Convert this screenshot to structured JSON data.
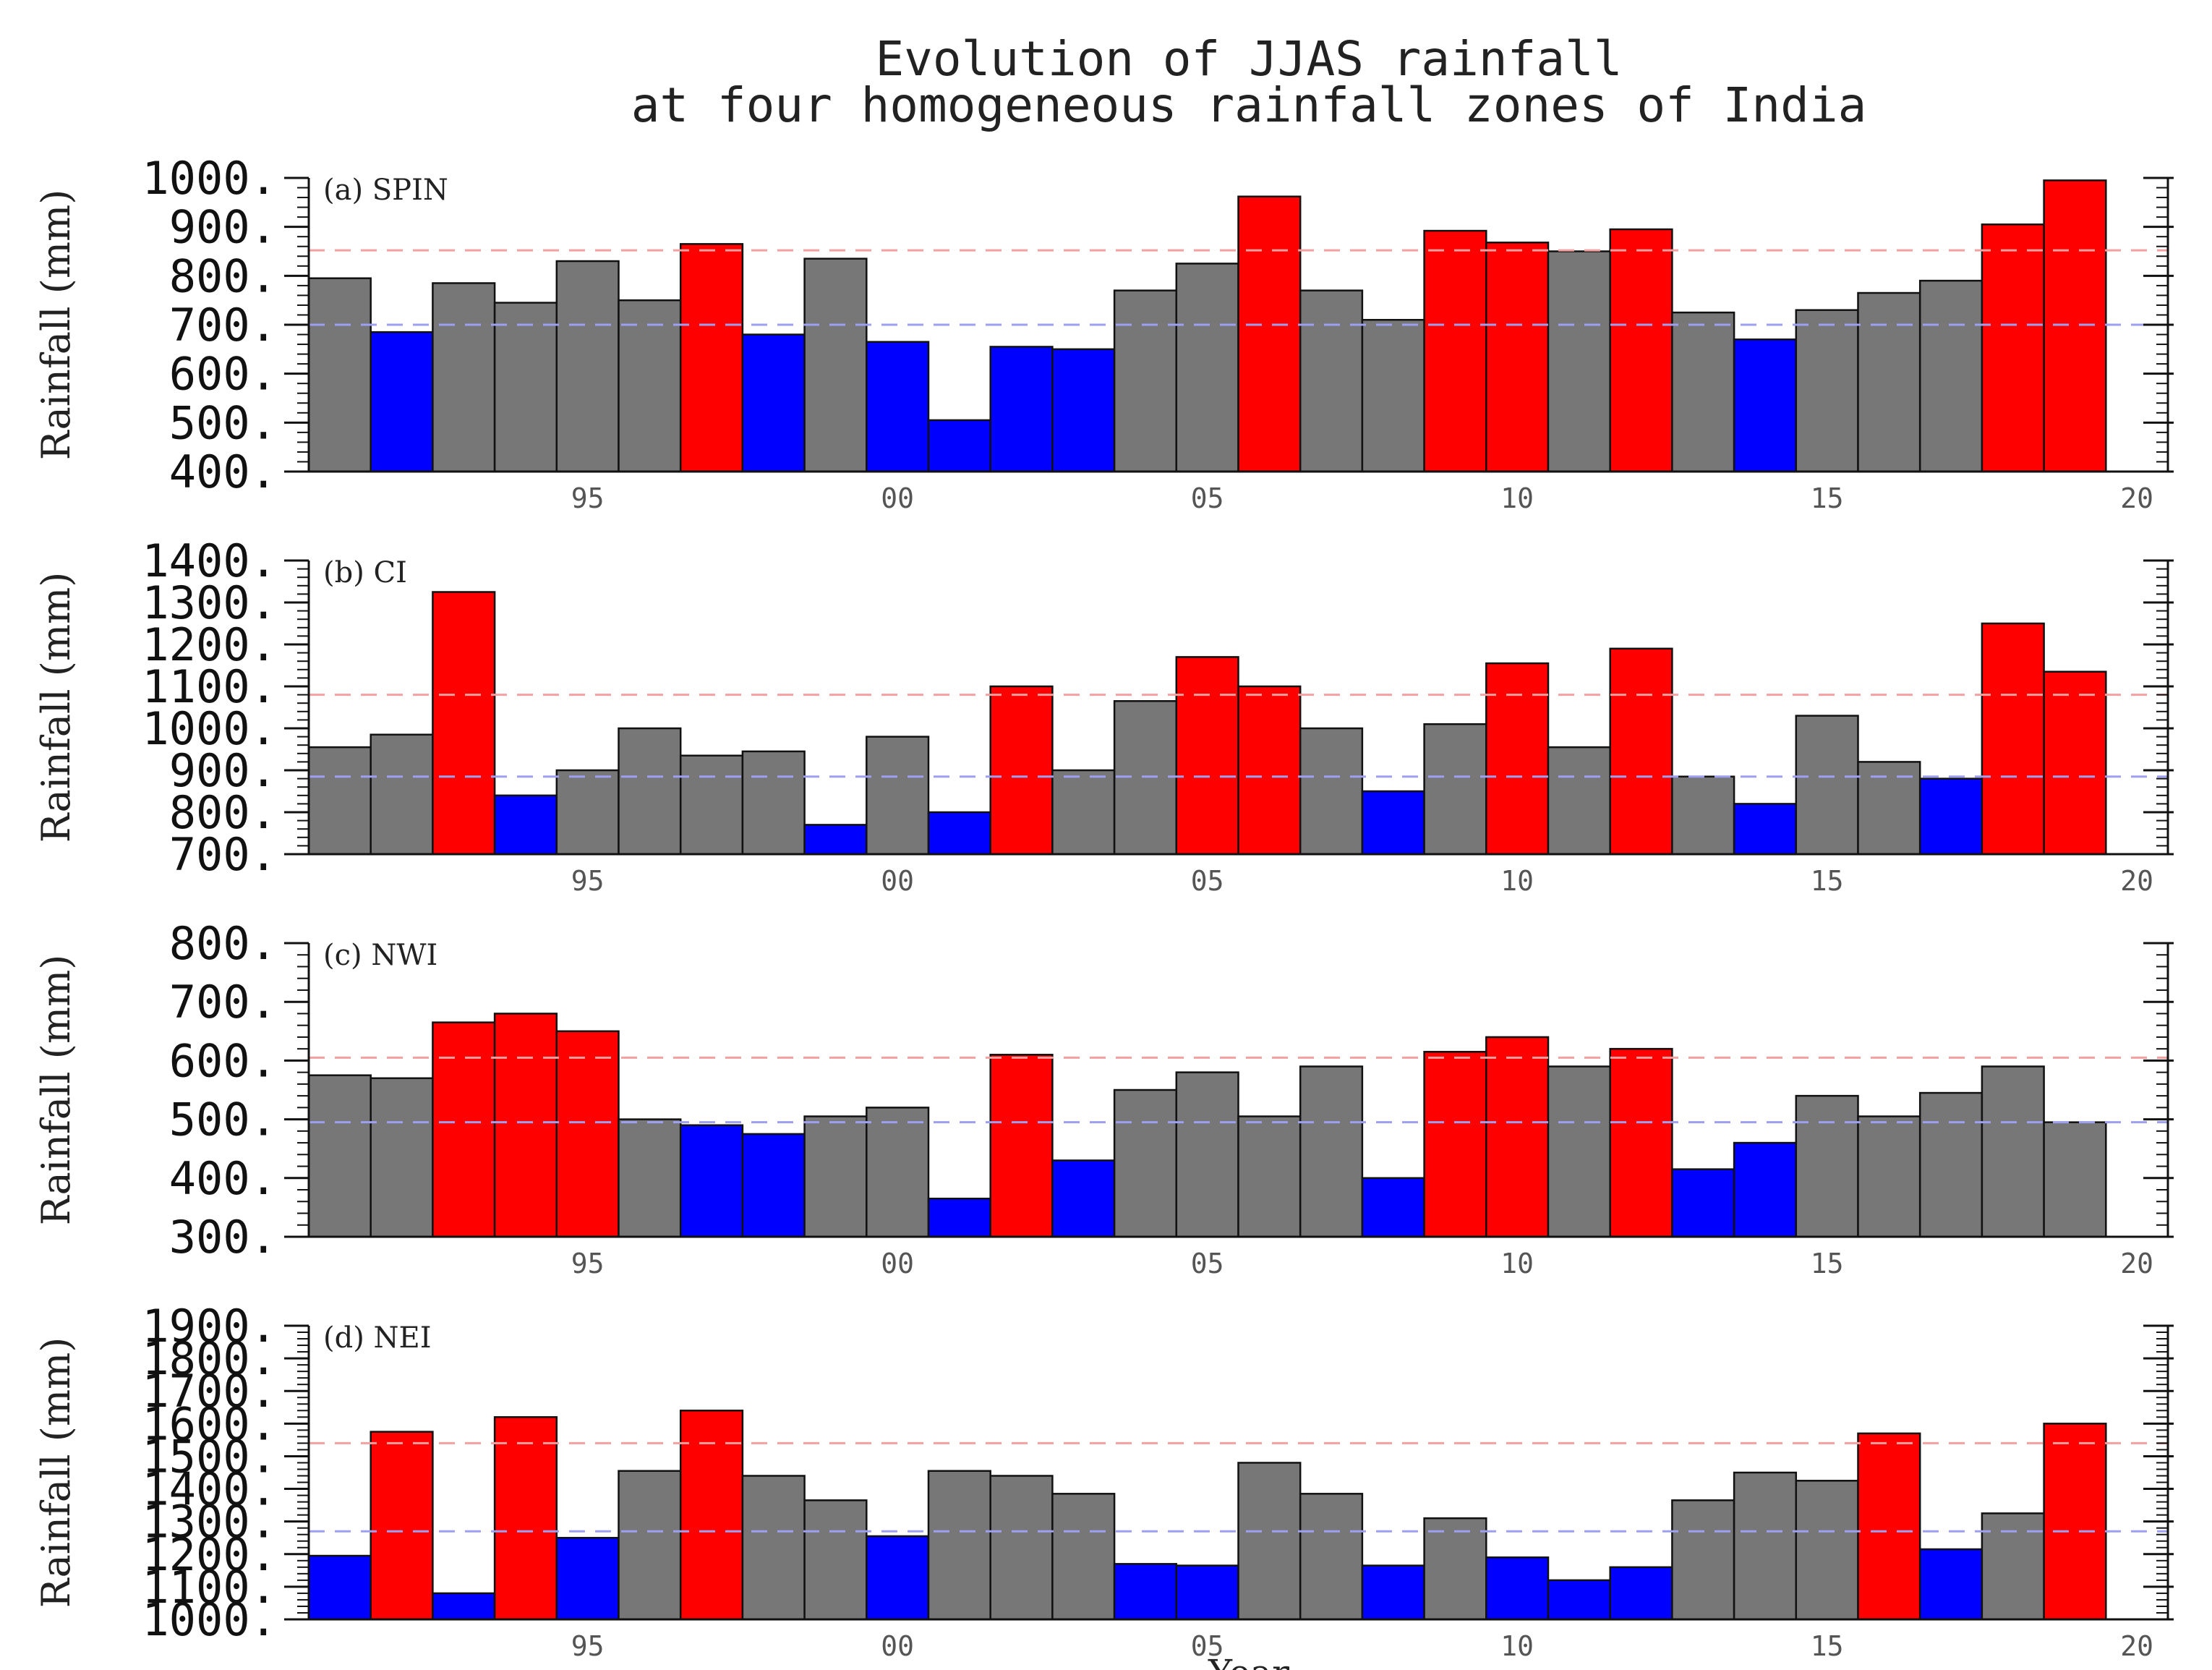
{
  "chart_data": {
    "title_line1": "Evolution of JJAS rainfall",
    "title_line2": "at four homogeneous rainfall zones of India",
    "xlabel": "Year",
    "colors": {
      "excess": "#ff0000",
      "deficit": "#0000ff",
      "normal": "#777777",
      "upper_line": "#f4a0a0",
      "lower_line": "#9d9ff0"
    },
    "x_tick_years": [
      1995,
      2000,
      2005,
      2010,
      2015,
      2020
    ],
    "x_tick_labels": [
      "95",
      "00",
      "05",
      "10",
      "15",
      "20"
    ],
    "years": [
      1991,
      1992,
      1993,
      1994,
      1995,
      1996,
      1997,
      1998,
      1999,
      2000,
      2001,
      2002,
      2003,
      2004,
      2005,
      2006,
      2007,
      2008,
      2009,
      2010,
      2011,
      2012,
      2013,
      2014,
      2015,
      2016,
      2017,
      2018,
      2019,
      2020
    ],
    "panels": [
      {
        "type": "bar",
        "label": "(a) SPIN",
        "ylabel": "Rainfall (mm)",
        "ylim": [
          400,
          1000
        ],
        "y_tick_values": [
          400,
          500,
          600,
          700,
          800,
          900,
          1000
        ],
        "y_tick_labels": [
          "400.",
          "500.",
          "600.",
          "700.",
          "800.",
          "900.",
          "1000."
        ],
        "upper_threshold": 852,
        "lower_threshold": 700,
        "values": [
          795,
          685,
          785,
          745,
          830,
          750,
          865,
          680,
          835,
          665,
          505,
          655,
          650,
          770,
          825,
          962,
          770,
          710,
          892,
          868,
          850,
          895,
          725,
          670,
          730,
          765,
          790,
          905,
          995,
          null
        ],
        "categories": [
          "N",
          "D",
          "N",
          "N",
          "N",
          "N",
          "E",
          "D",
          "N",
          "D",
          "D",
          "D",
          "D",
          "N",
          "N",
          "E",
          "N",
          "N",
          "E",
          "E",
          "N",
          "E",
          "N",
          "D",
          "N",
          "N",
          "N",
          "E",
          "E",
          "N"
        ]
      },
      {
        "type": "bar",
        "label": "(b) CI",
        "ylabel": "Rainfall (mm)",
        "ylim": [
          700,
          1400
        ],
        "y_tick_values": [
          700,
          800,
          900,
          1000,
          1100,
          1200,
          1300,
          1400
        ],
        "y_tick_labels": [
          "700.",
          "800.",
          "900.",
          "1000.",
          "1100.",
          "1200.",
          "1300.",
          "1400."
        ],
        "upper_threshold": 1080,
        "lower_threshold": 885,
        "values": [
          955,
          985,
          1325,
          840,
          900,
          1000,
          935,
          945,
          770,
          980,
          800,
          1100,
          900,
          1065,
          1170,
          1100,
          1000,
          850,
          1010,
          1155,
          955,
          1190,
          885,
          820,
          1030,
          920,
          880,
          1250,
          1135,
          null
        ],
        "categories": [
          "N",
          "N",
          "E",
          "D",
          "N",
          "N",
          "N",
          "N",
          "D",
          "N",
          "D",
          "E",
          "N",
          "N",
          "E",
          "E",
          "N",
          "D",
          "N",
          "E",
          "N",
          "E",
          "N",
          "D",
          "N",
          "N",
          "D",
          "E",
          "E",
          "N"
        ]
      },
      {
        "type": "bar",
        "label": "(c) NWI",
        "ylabel": "Rainfall (mm)",
        "ylim": [
          300,
          800
        ],
        "y_tick_values": [
          300,
          400,
          500,
          600,
          700,
          800
        ],
        "y_tick_labels": [
          "300.",
          "400.",
          "500.",
          "600.",
          "700.",
          "800."
        ],
        "upper_threshold": 605,
        "lower_threshold": 495,
        "values": [
          575,
          570,
          665,
          680,
          650,
          500,
          490,
          475,
          505,
          520,
          365,
          610,
          430,
          550,
          580,
          505,
          590,
          400,
          615,
          640,
          590,
          620,
          415,
          460,
          540,
          505,
          545,
          590,
          495,
          null
        ],
        "categories": [
          "N",
          "N",
          "E",
          "E",
          "E",
          "N",
          "D",
          "D",
          "N",
          "N",
          "D",
          "E",
          "D",
          "N",
          "N",
          "N",
          "N",
          "D",
          "E",
          "E",
          "N",
          "E",
          "D",
          "D",
          "N",
          "N",
          "N",
          "N",
          "N",
          "N"
        ]
      },
      {
        "type": "bar",
        "label": "(d) NEI",
        "ylabel": "Rainfall (mm)",
        "ylim": [
          1000,
          1900
        ],
        "y_tick_values": [
          1000,
          1100,
          1200,
          1300,
          1400,
          1500,
          1600,
          1700,
          1800,
          1900
        ],
        "y_tick_labels": [
          "1000.",
          "1100.",
          "1200.",
          "1300.",
          "1400.",
          "1500.",
          "1600.",
          "1700.",
          "1800.",
          "1900."
        ],
        "upper_threshold": 1540,
        "lower_threshold": 1270,
        "values": [
          1195,
          1575,
          1080,
          1620,
          1250,
          1455,
          1640,
          1440,
          1365,
          1255,
          1455,
          1440,
          1385,
          1170,
          1165,
          1480,
          1385,
          1165,
          1310,
          1190,
          1120,
          1160,
          1365,
          1450,
          1425,
          1570,
          1215,
          1325,
          1600,
          null
        ],
        "categories": [
          "D",
          "E",
          "D",
          "E",
          "D",
          "N",
          "E",
          "N",
          "N",
          "D",
          "N",
          "N",
          "N",
          "D",
          "D",
          "N",
          "N",
          "D",
          "N",
          "D",
          "D",
          "D",
          "N",
          "N",
          "N",
          "E",
          "D",
          "N",
          "E",
          "N"
        ]
      }
    ]
  }
}
